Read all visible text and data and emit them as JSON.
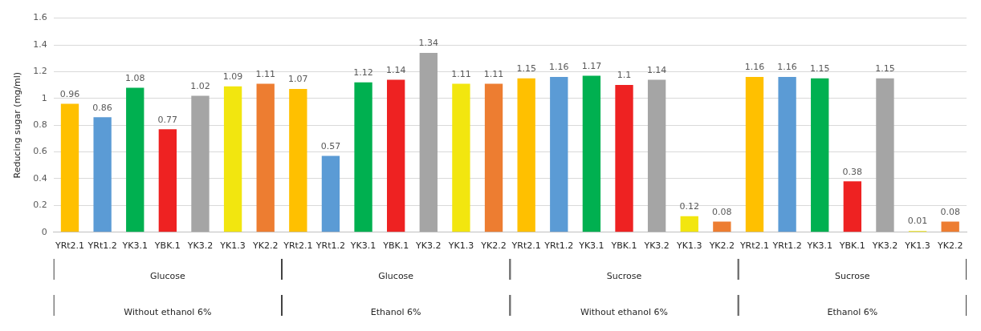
{
  "chart_data": {
    "type": "bar",
    "ylabel": "Reducing sugar (mg/ml)",
    "categories": [
      "YRt2.1",
      "YRt1.2",
      "YK3.1",
      "YBK.1",
      "YK3.2",
      "YK1.3",
      "YK2.2",
      "YRt2.1",
      "YRt1.2",
      "YK3.1",
      "YBK.1",
      "YK3.2",
      "YK1.3",
      "YK2.2",
      "YRt2.1",
      "YRt1.2",
      "YK3.1",
      "YBK.1",
      "YK3.2",
      "YK1.3",
      "YK2.2",
      "YRt2.1",
      "YRt1.2",
      "YK3.1",
      "YBK.1",
      "YK3.2",
      "YK1.3",
      "YK2.2"
    ],
    "values": [
      0.96,
      0.86,
      1.08,
      0.77,
      1.02,
      1.09,
      1.11,
      1.07,
      0.57,
      1.12,
      1.14,
      1.34,
      1.11,
      1.11,
      1.15,
      1.16,
      1.17,
      1.1,
      1.14,
      0.12,
      0.08,
      1.16,
      1.16,
      1.15,
      0.38,
      1.15,
      0.01,
      0.08
    ],
    "colors": [
      "#ffc000",
      "#5b9bd5",
      "#00b050",
      "#ee2222",
      "#a5a5a5",
      "#f2e60f",
      "#ed7d31",
      "#ffc000",
      "#5b9bd5",
      "#00b050",
      "#ee2222",
      "#a5a5a5",
      "#f2e60f",
      "#ed7d31",
      "#ffc000",
      "#5b9bd5",
      "#00b050",
      "#ee2222",
      "#a5a5a5",
      "#f2e60f",
      "#ed7d31",
      "#ffc000",
      "#5b9bd5",
      "#00b050",
      "#ee2222",
      "#a5a5a5",
      "#f2e60f",
      "#ed7d31"
    ],
    "ylim": [
      0,
      1.6
    ],
    "yticks": [
      0,
      0.2,
      0.4,
      0.6,
      0.8,
      1,
      1.2,
      1.4,
      1.6
    ],
    "grid": "y",
    "data_labels": true,
    "annotations": [
      "Glucose",
      "Glucose",
      "Sucrose",
      "Sucrose",
      "Without ethanol 6%",
      "Ethanol 6%",
      "Without ethanol 6%",
      "Ethanol 6%"
    ]
  }
}
